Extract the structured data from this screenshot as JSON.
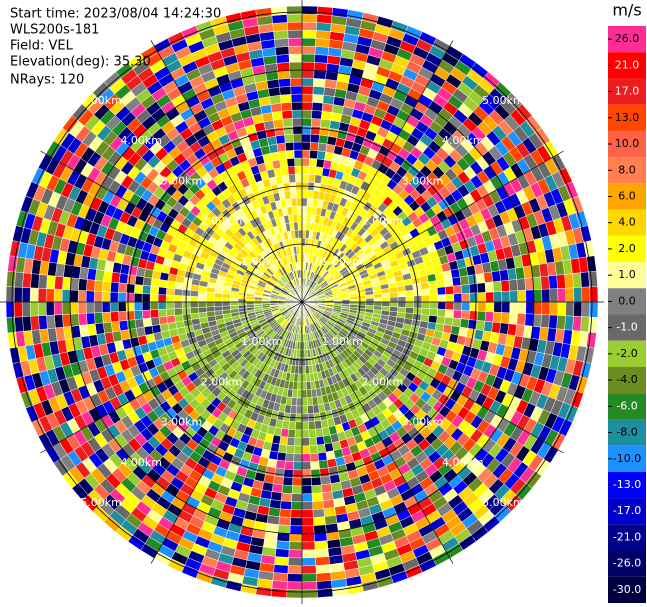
{
  "chart_data": {
    "type": "radar_ppi",
    "info": [
      "Start time: 2023/08/04 14:24:30",
      "WLS200s-181",
      "Field: VEL",
      "Elevation(deg): 35.30",
      "NRays: 120"
    ],
    "nrays": 120,
    "range_labels": [
      "1.00km",
      "2.00km",
      "3.00km",
      "4.00km",
      "5.00km"
    ],
    "colorbar": {
      "unit": "m/s",
      "ticks": [
        {
          "value": 26,
          "label": "26.0"
        },
        {
          "value": 21,
          "label": "21.0"
        },
        {
          "value": 17,
          "label": "17.0"
        },
        {
          "value": 13,
          "label": "13.0"
        },
        {
          "value": 10,
          "label": "10.0"
        },
        {
          "value": 8,
          "label": "8.0"
        },
        {
          "value": 6,
          "label": "6.0"
        },
        {
          "value": 4,
          "label": "4.0"
        },
        {
          "value": 2,
          "label": "2.0"
        },
        {
          "value": 1,
          "label": "1.0"
        },
        {
          "value": 0,
          "label": "0.0"
        },
        {
          "value": -1,
          "label": "-1.0"
        },
        {
          "value": -2,
          "label": "-2.0"
        },
        {
          "value": -4,
          "label": "-4.0"
        },
        {
          "value": -6,
          "label": "-6.0"
        },
        {
          "value": -8,
          "label": "-8.0"
        },
        {
          "value": -10,
          "label": "-10.0"
        },
        {
          "value": -13,
          "label": "-13.0"
        },
        {
          "value": -17,
          "label": "-17.0"
        },
        {
          "value": -21,
          "label": "-21.0"
        },
        {
          "value": -26,
          "label": "-26.0"
        },
        {
          "value": -30,
          "label": "-30.0"
        }
      ],
      "colors": [
        "#ff2d96",
        "#ff0000",
        "#ee1c1c",
        "#ff4500",
        "#ff6347",
        "#ff7f50",
        "#ffa500",
        "#ffd700",
        "#ffff00",
        "#ffff99",
        "#808080",
        "#696969",
        "#9acd32",
        "#6b8e23",
        "#228b22",
        "#1e8fa0",
        "#1e90ff",
        "#0000ff",
        "#0000cd",
        "#00008b",
        "#000066",
        "#000040"
      ]
    }
  }
}
